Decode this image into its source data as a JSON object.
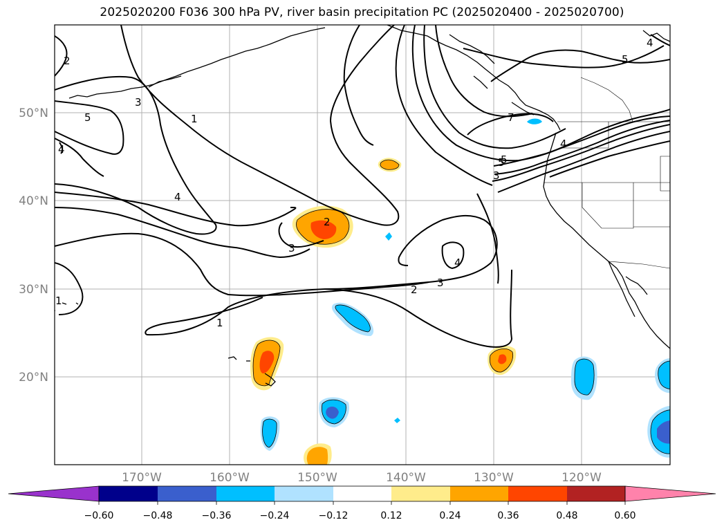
{
  "title": "2025020200 F036 300 hPa PV, river basin precipitation PC (2025020400 - 2025020700)",
  "lat_labels": [
    "50°N",
    "40°N",
    "30°N",
    "20°N"
  ],
  "lon_labels": [
    "170°W",
    "160°W",
    "150°W",
    "140°W",
    "130°W",
    "120°W"
  ],
  "colorbar": {
    "colors": [
      "#9932CC",
      "#00008B",
      "#3A5FCD",
      "#00BFFF",
      "#B0E2FF",
      "#FFFFFF",
      "#FFEC8B",
      "#FFA500",
      "#FF4500",
      "#B22222",
      "#FF82AB"
    ],
    "tick_labels": [
      "−0.60",
      "−0.48",
      "−0.36",
      "−0.24",
      "−0.12",
      "0.12",
      "0.24",
      "0.36",
      "0.48",
      "0.60"
    ]
  },
  "contour_labels": {
    "c1": "2",
    "c2": "3",
    "c3": "5",
    "c4": "4",
    "c5": "1",
    "c6": "4",
    "c7": "2",
    "c8": "3",
    "c9": "4",
    "c10": "3",
    "c11": "2",
    "c12": "1",
    "c13": "1",
    "c14": "7",
    "c15": "5",
    "c16": "4",
    "c17": "5",
    "c18": "3",
    "c19": "5",
    "c20": "4"
  }
}
